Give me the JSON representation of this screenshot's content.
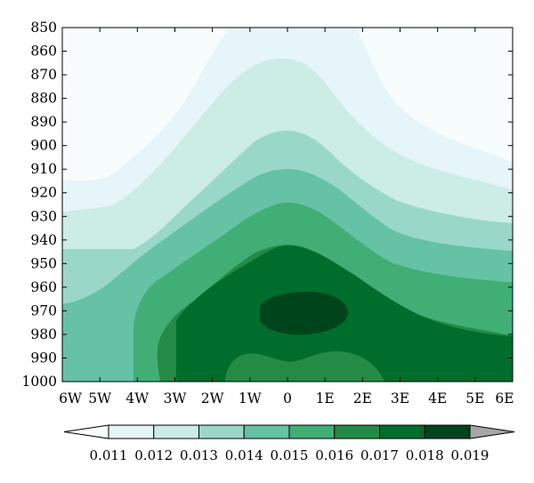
{
  "chart_data": {
    "type": "heatmap",
    "title": "",
    "xlabel": "",
    "ylabel": "",
    "x_tick_labels": [
      "6W",
      "5W",
      "4W",
      "3W",
      "2W",
      "1W",
      "0",
      "1E",
      "2E",
      "3E",
      "4E",
      "5E",
      "6E"
    ],
    "y_tick_labels": [
      "850",
      "860",
      "870",
      "880",
      "890",
      "900",
      "910",
      "920",
      "930",
      "940",
      "950",
      "960",
      "970",
      "980",
      "990",
      "1000"
    ],
    "y_axis": {
      "range": [
        850,
        1000
      ],
      "inverted": true
    },
    "x_axis": {
      "range": [
        "6W",
        "6E"
      ]
    },
    "colorbar": {
      "levels": [
        "0.011",
        "0.012",
        "0.013",
        "0.014",
        "0.015",
        "0.016",
        "0.017",
        "0.018",
        "0.019"
      ],
      "colors": [
        "#f7fcfd",
        "#e5f5f9",
        "#ccece6",
        "#99d8c9",
        "#66c2a4",
        "#41ae76",
        "#238b45",
        "#006d2c",
        "#00441b",
        "#a6a6a6"
      ],
      "extend": "both",
      "orientation": "horizontal",
      "placement": "bottom"
    },
    "contour_fields": {
      "note_levels_are_filled_bands": true,
      "band_tops_hPa_at_x": {
        "x": [
          "6W",
          "5W",
          "4W",
          "3W",
          "2W",
          "1W",
          "0",
          "1E",
          "2E",
          "3E",
          "4E",
          "5E",
          "6E"
        ],
        "0.012": [
          914,
          914,
          900,
          880,
          860,
          850,
          850,
          850,
          850,
          872,
          890,
          900,
          908
        ],
        "0.013": [
          928,
          926,
          917,
          902,
          884,
          866,
          862,
          866,
          880,
          900,
          912,
          918,
          922
        ],
        "0.014": [
          944,
          944,
          932,
          917,
          900,
          884,
          884,
          890,
          900,
          914,
          925,
          930,
          932
        ],
        "0.015": [
          968,
          960,
          946,
          932,
          917,
          900,
          896,
          902,
          912,
          926,
          934,
          938,
          940
        ],
        "0.016": [
          1000,
          1000,
          966,
          950,
          932,
          914,
          910,
          914,
          926,
          942,
          950,
          954,
          955
        ],
        "0.017": [
          1000,
          1000,
          990,
          972,
          950,
          930,
          924,
          928,
          940,
          958,
          968,
          972,
          974
        ],
        "0.018": [
          1000,
          1000,
          1000,
          1000,
          968,
          950,
          944,
          946,
          956,
          972,
          980,
          982,
          984
        ],
        "0.019_core": {
          "x_range": [
            "1W",
            "1E"
          ],
          "p_range": [
            962,
            980
          ]
        }
      }
    }
  }
}
